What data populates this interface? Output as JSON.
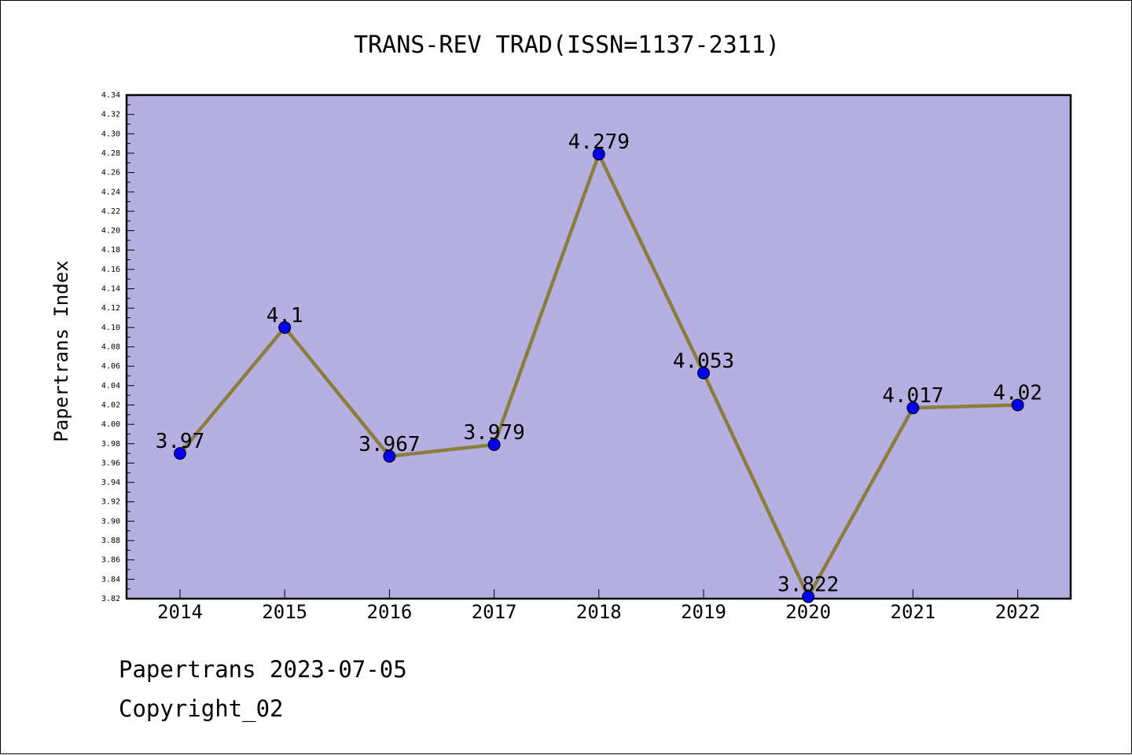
{
  "chart_data": {
    "type": "line",
    "title": "TRANS-REV TRAD(ISSN=1137-2311)",
    "xlabel": "",
    "ylabel": "Papertrans Index",
    "categories": [
      "2014",
      "2015",
      "2016",
      "2017",
      "2018",
      "2019",
      "2020",
      "2021",
      "2022"
    ],
    "values": [
      3.97,
      4.1,
      3.967,
      3.979,
      4.279,
      4.053,
      3.822,
      4.017,
      4.02
    ],
    "value_labels": [
      "3.97",
      "4.1",
      "3.967",
      "3.979",
      "4.279",
      "4.053",
      "3.822",
      "4.017",
      "4.02"
    ],
    "ylim": [
      3.82,
      4.34
    ],
    "ytick_step": 0.02,
    "grid": false,
    "colors": {
      "plot_background": "#b5afe2",
      "line": "#8b7d3c",
      "marker": "#0000ee"
    }
  },
  "footer": {
    "line1": "Papertrans 2023-07-05",
    "line2": "Copyright_02"
  }
}
